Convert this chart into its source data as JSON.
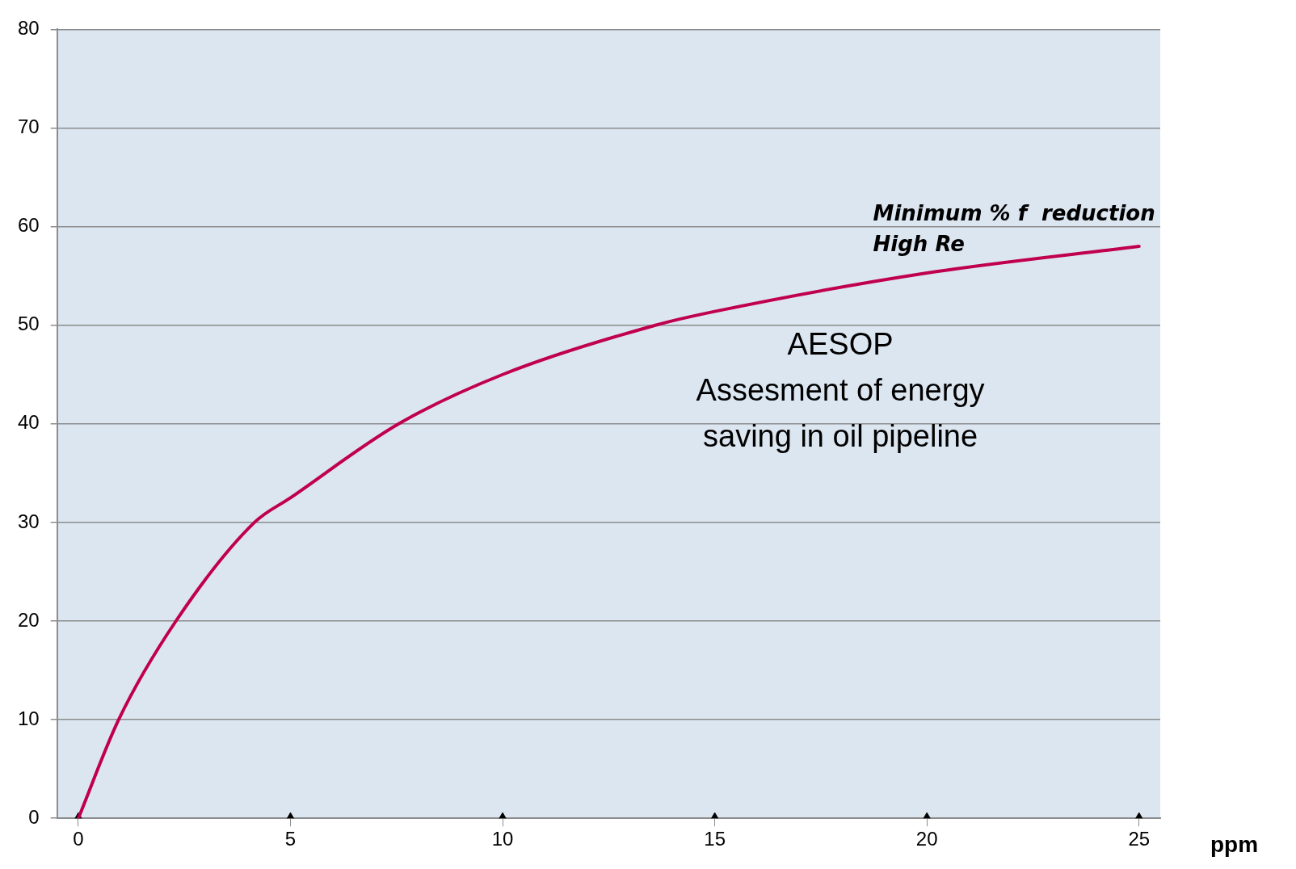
{
  "chart_data": {
    "type": "line",
    "xlabel": "ppm",
    "xlim": [
      -0.5,
      25.5
    ],
    "xticks": [
      0,
      5,
      10,
      15,
      20,
      25
    ],
    "ylim": [
      0,
      80
    ],
    "yticks": [
      0,
      10,
      20,
      30,
      40,
      50,
      60,
      70,
      80
    ],
    "grid": "y",
    "legend": false,
    "series": [
      {
        "name": "Minimum % f  reduction\nHigh Re",
        "color": "#c0004e",
        "marker": "none",
        "x": [
          0,
          0.95,
          2.3,
          4.15,
          5,
          7.55,
          10,
          13.6,
          15,
          20,
          25
        ],
        "values": [
          0,
          10,
          20,
          30,
          32.5,
          40,
          45,
          50,
          51.4,
          55.3,
          58
        ]
      },
      {
        "type": "scatter",
        "color": "#000000",
        "marker": "triangle",
        "x": [
          0,
          5,
          10,
          15,
          20,
          25
        ],
        "values": [
          0,
          0,
          0,
          0,
          0,
          0
        ]
      }
    ],
    "annotations": [
      "AESOP\nAssesment of energy\nsaving in oil pipeline"
    ]
  }
}
